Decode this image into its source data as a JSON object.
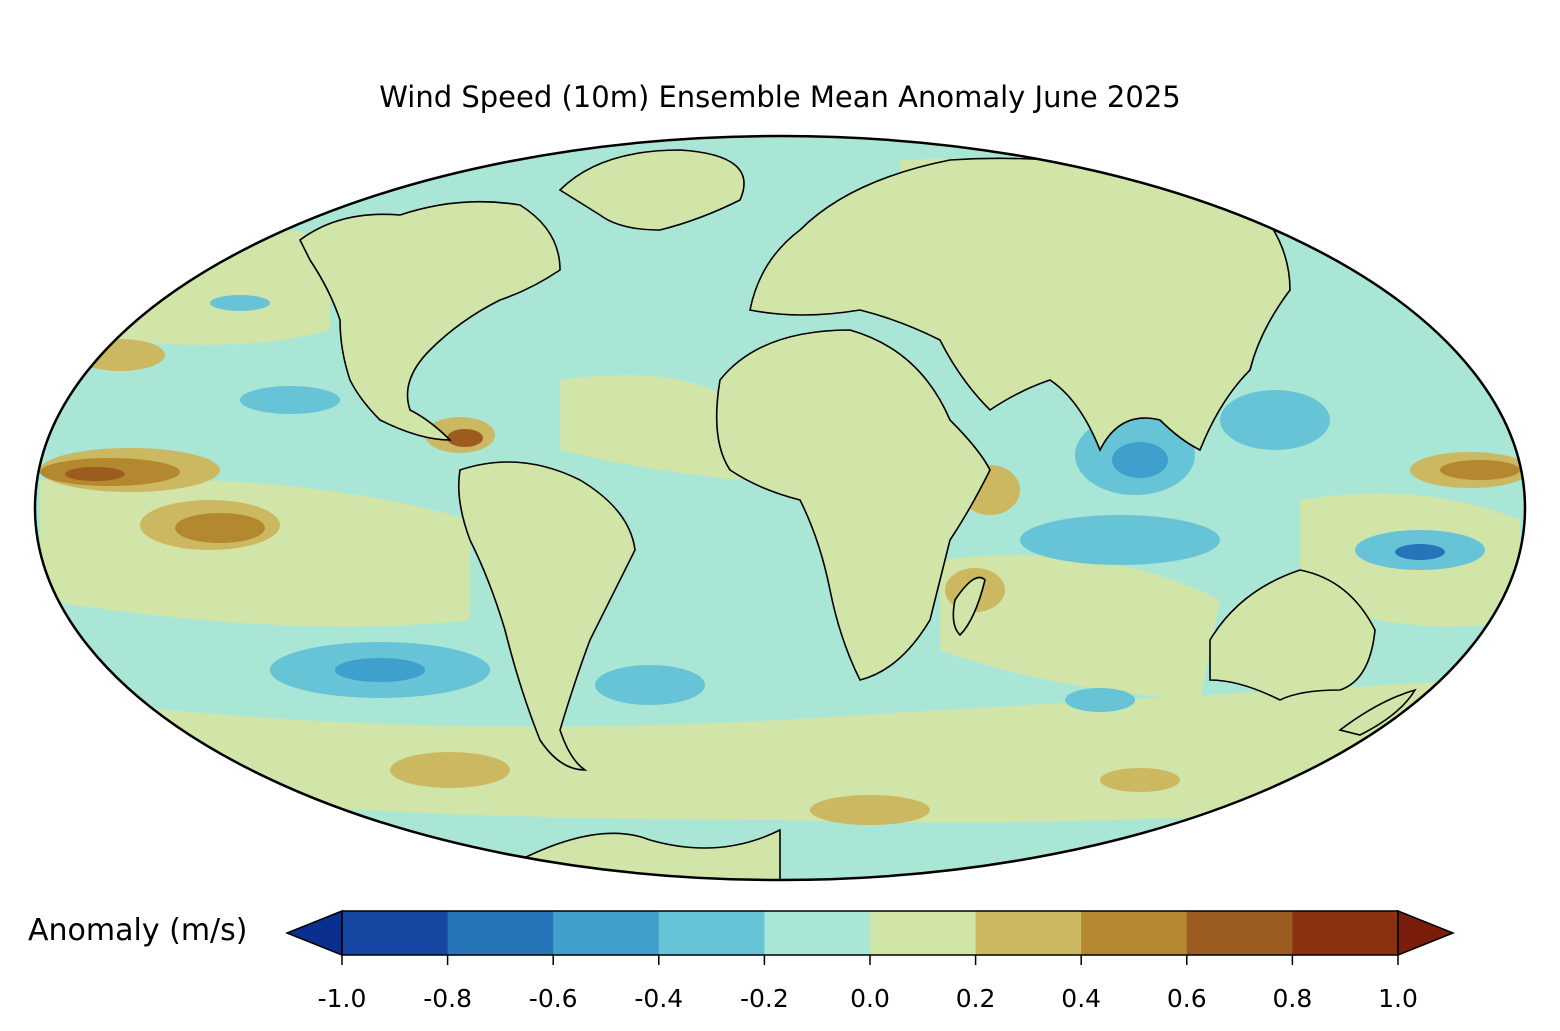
{
  "title": "Wind Speed (10m) Ensemble Mean Anomaly June 2025",
  "projection": "Mollweide",
  "colorbar": {
    "label": "Anomaly (m/s)",
    "ticks": [
      "-1.0",
      "-0.8",
      "-0.6",
      "-0.4",
      "-0.2",
      "0.0",
      "0.2",
      "0.4",
      "0.6",
      "0.8",
      "1.0"
    ],
    "levels": [
      -1.0,
      -0.8,
      -0.6,
      -0.4,
      -0.2,
      0.0,
      0.2,
      0.4,
      0.6,
      0.8,
      1.0
    ],
    "colors": [
      "#1547a3",
      "#2774b9",
      "#3f9fcd",
      "#67c4d6",
      "#a9e6d6",
      "#d1e5a8",
      "#cbb860",
      "#b3882f",
      "#9c5b1f",
      "#8a3210"
    ],
    "under_color": "#0b2f8e",
    "over_color": "#7a1d0a",
    "extend": "both"
  },
  "colors": {
    "ocean_base": "#a9e6d6",
    "land_base": "#d1e5a8",
    "coastline": "#000000",
    "borders": "#808080"
  }
}
